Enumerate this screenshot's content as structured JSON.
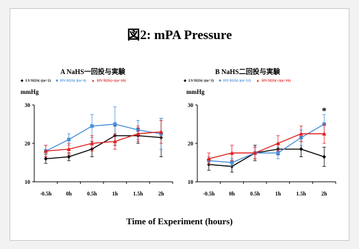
{
  "title": "図2:  mPA Pressure",
  "xlabel": "Time of Experiment (hours)",
  "chart_data": [
    {
      "type": "line",
      "title": "A  NaHS一回投与実験",
      "ylabel": "mmHg",
      "ylim": [
        10,
        30
      ],
      "yticks": [
        "10",
        "20",
        "30"
      ],
      "categories": [
        "-0.5h",
        "0h",
        "0.5h",
        "1h",
        "1.5h",
        "2h"
      ],
      "series": [
        {
          "name": "LV/H2S(-)(n=2)",
          "marker": "◆",
          "color": "#000000",
          "values": [
            16.0,
            16.5,
            18.5,
            22.0,
            22.0,
            21.5
          ],
          "err": [
            1.2,
            1.0,
            2.0,
            2.5,
            2.0,
            5.0
          ]
        },
        {
          "name": "HV/H2S(-)(n=4)",
          "marker": "■",
          "color": "#4a90d9",
          "values": [
            18.0,
            21.0,
            24.5,
            25.0,
            23.5,
            22.5
          ],
          "err": [
            1.5,
            1.5,
            3.0,
            4.5,
            2.5,
            4.0
          ]
        },
        {
          "name": "HV/H2S(+)(n=10)",
          "marker": "▲",
          "color": "#e02020",
          "values": [
            18.0,
            18.5,
            20.0,
            20.5,
            22.5,
            23.0
          ],
          "err": [
            1.5,
            1.5,
            2.0,
            2.0,
            2.0,
            3.0
          ]
        }
      ]
    },
    {
      "type": "line",
      "title": "B  NaHS二回投与実験",
      "ylabel": "mmHg",
      "ylim": [
        10,
        30
      ],
      "yticks": [
        "10",
        "20",
        "30"
      ],
      "categories": [
        "-0.5h",
        "0h",
        "0.5h",
        "1h",
        "1.5h",
        "2h"
      ],
      "annotation": {
        "text": "*",
        "category": "2h",
        "value": 28.0
      },
      "series": [
        {
          "name": "LV/H2S(-)(n=3)",
          "marker": "◆",
          "color": "#000000",
          "values": [
            14.5,
            14.0,
            17.5,
            18.5,
            18.5,
            16.5
          ],
          "err": [
            1.5,
            1.5,
            2.0,
            1.5,
            2.0,
            2.5
          ]
        },
        {
          "name": "HV/H2S(-)(n=11)",
          "marker": "■",
          "color": "#4a90d9",
          "values": [
            15.5,
            15.0,
            17.5,
            17.5,
            21.5,
            25.0
          ],
          "err": [
            1.0,
            1.0,
            1.5,
            1.5,
            2.0,
            2.5
          ]
        },
        {
          "name": "HV/H2S(+)(n=16)",
          "marker": "▲",
          "color": "#e02020",
          "values": [
            16.0,
            17.5,
            17.5,
            20.0,
            22.5,
            22.5
          ],
          "err": [
            1.5,
            2.0,
            1.5,
            2.0,
            2.0,
            2.5
          ]
        }
      ]
    }
  ]
}
